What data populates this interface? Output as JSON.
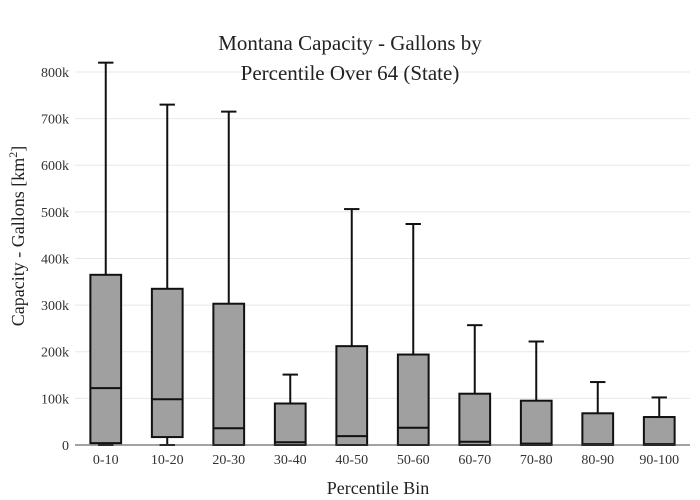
{
  "chart_data": {
    "type": "box",
    "title": "Montana Capacity - Gallons by Percentile Over 64 (State)",
    "title_lines": [
      "Montana Capacity - Gallons by",
      "Percentile Over 64 (State)"
    ],
    "xlabel": "Percentile Bin",
    "ylabel_main": "Capacity - Gallons  [km",
    "ylabel_sup": "2",
    "ylabel_end": "]",
    "ylim": [
      0,
      830000
    ],
    "yticks": [
      0,
      100000,
      200000,
      300000,
      400000,
      500000,
      600000,
      700000,
      800000
    ],
    "ytick_labels": [
      "0",
      "100k",
      "200k",
      "300k",
      "400k",
      "500k",
      "600k",
      "700k",
      "800k"
    ],
    "grid": true,
    "categories": [
      "0-10",
      "10-20",
      "20-30",
      "30-40",
      "40-50",
      "50-60",
      "60-70",
      "70-80",
      "80-90",
      "90-100"
    ],
    "boxes": [
      {
        "min": 0,
        "q1": 4000,
        "median": 122000,
        "q3": 365000,
        "max": 820000
      },
      {
        "min": 0,
        "q1": 17000,
        "median": 98000,
        "q3": 335000,
        "max": 730000
      },
      {
        "min": 0,
        "q1": 0,
        "median": 36000,
        "q3": 303000,
        "max": 715000
      },
      {
        "min": 0,
        "q1": 0,
        "median": 6000,
        "q3": 89000,
        "max": 151000
      },
      {
        "min": 0,
        "q1": 0,
        "median": 19000,
        "q3": 212000,
        "max": 506000
      },
      {
        "min": 0,
        "q1": 0,
        "median": 37000,
        "q3": 194000,
        "max": 474000
      },
      {
        "min": 0,
        "q1": 0,
        "median": 7000,
        "q3": 110000,
        "max": 257000
      },
      {
        "min": 0,
        "q1": 0,
        "median": 3000,
        "q3": 95000,
        "max": 222000
      },
      {
        "min": 0,
        "q1": 0,
        "median": 2000,
        "q3": 68000,
        "max": 135000
      },
      {
        "min": 0,
        "q1": 0,
        "median": 2000,
        "q3": 60000,
        "max": 102000
      }
    ],
    "colors": {
      "box_fill": "#a0a0a0",
      "line": "#111111",
      "grid": "#e8e8e8"
    }
  }
}
